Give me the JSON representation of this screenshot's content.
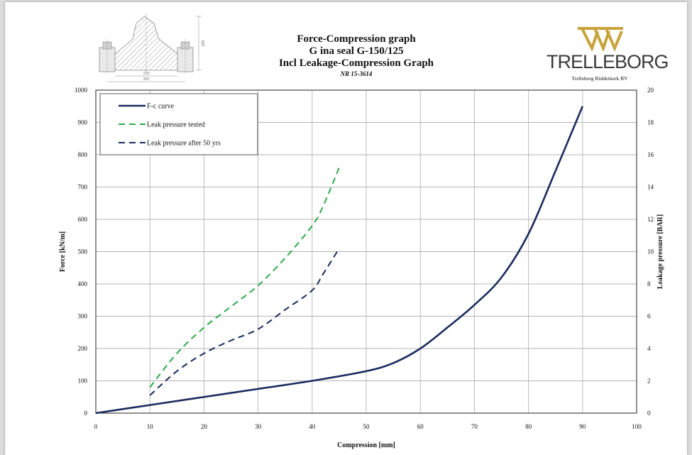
{
  "header": {
    "title_line1": "Force-Compression graph",
    "title_line2": "G ina seal G-150/125",
    "title_line3": "Incl Leakage-Compression Graph",
    "title_line4": "NR 15-3614",
    "logo_text": "TRELLEBORG",
    "logo_subtext": "Trelleborg Ridderkerk BV",
    "logo_color": "#c8a23a"
  },
  "drawing": {
    "dim_height": "200",
    "dim_inner": "250",
    "dim_outer": "395"
  },
  "chart_data": {
    "type": "line",
    "xlabel": "Compression [mm]",
    "ylabel": "Force [kN/m]",
    "y2label": "Leakage pressure [BAR]",
    "xlim": [
      0,
      100
    ],
    "ylim": [
      0,
      1000
    ],
    "y2lim": [
      0,
      20
    ],
    "xticks": [
      0,
      10,
      20,
      30,
      40,
      50,
      60,
      70,
      80,
      90,
      100
    ],
    "yticks": [
      0,
      100,
      200,
      300,
      400,
      500,
      600,
      700,
      800,
      900,
      1000
    ],
    "y2ticks": [
      0,
      2,
      4,
      6,
      8,
      10,
      12,
      14,
      16,
      18,
      20
    ],
    "grid": true,
    "legend_position": "top-left",
    "series": [
      {
        "name": "F-c curve",
        "axis": "left",
        "color": "#1a2a5e",
        "style": "solid",
        "x": [
          0,
          10,
          20,
          30,
          40,
          50,
          55,
          60,
          65,
          70,
          75,
          80,
          85,
          90
        ],
        "y": [
          0,
          25,
          50,
          75,
          100,
          130,
          155,
          200,
          265,
          335,
          420,
          555,
          750,
          950
        ]
      },
      {
        "name": "Leak pressure tested",
        "axis": "right",
        "color": "#2eaa4a",
        "style": "dashed",
        "x": [
          10,
          15,
          20,
          25,
          30,
          35,
          40,
          42,
          45
        ],
        "y": [
          1.6,
          3.7,
          5.3,
          6.6,
          7.9,
          9.6,
          11.6,
          12.8,
          15.2
        ]
      },
      {
        "name": "Leak pressure after 50 yrs",
        "axis": "right",
        "color": "#1a2a5e",
        "style": "dashed",
        "x": [
          10,
          15,
          20,
          25,
          30,
          35,
          40,
          42,
          45
        ],
        "y": [
          1.1,
          2.6,
          3.7,
          4.5,
          5.2,
          6.4,
          7.6,
          8.6,
          10.2
        ]
      }
    ]
  }
}
